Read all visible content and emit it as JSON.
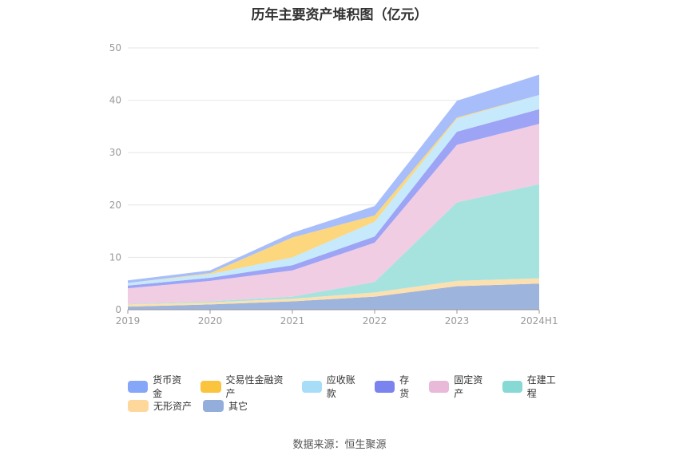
{
  "title": "历年主要资产堆积图（亿元）",
  "source": "数据来源：恒生聚源",
  "chart_data": {
    "type": "area",
    "stacked": true,
    "categories": [
      "2019",
      "2020",
      "2021",
      "2022",
      "2023",
      "2024H1"
    ],
    "ylim": [
      0,
      50
    ],
    "yticks": [
      0,
      10,
      20,
      30,
      40,
      50
    ],
    "grid": true,
    "legend_position": "bottom",
    "series": [
      {
        "name": "其它",
        "color": "#9db4dc",
        "values": [
          0.6,
          1.0,
          1.6,
          2.5,
          4.5,
          5.0
        ]
      },
      {
        "name": "无形资产",
        "color": "#fde0b0",
        "values": [
          0.4,
          0.4,
          0.5,
          0.8,
          1.0,
          1.0
        ]
      },
      {
        "name": "在建工程",
        "color": "#a6e3df",
        "values": [
          0.1,
          0.2,
          0.4,
          2.0,
          15.0,
          18.0
        ]
      },
      {
        "name": "固定资产",
        "color": "#f0cde3",
        "values": [
          3.0,
          3.9,
          5.0,
          7.5,
          11.0,
          11.5
        ]
      },
      {
        "name": "存货",
        "color": "#9da3f5",
        "values": [
          0.5,
          0.6,
          1.0,
          1.2,
          2.5,
          2.8
        ]
      },
      {
        "name": "应收账款",
        "color": "#c6e9fb",
        "values": [
          0.5,
          0.7,
          1.5,
          2.8,
          2.5,
          2.7
        ]
      },
      {
        "name": "交易性金融资产",
        "color": "#fcd77e",
        "values": [
          0.0,
          0.2,
          3.8,
          1.2,
          0.2,
          0.0
        ]
      },
      {
        "name": "货币资金",
        "color": "#a7befa",
        "values": [
          0.5,
          0.5,
          0.9,
          1.8,
          3.2,
          3.9
        ]
      }
    ]
  },
  "legend": {
    "rows": [
      [
        {
          "label": "货币资金",
          "color": "#86a6f7"
        },
        {
          "label": "交易性金融资产",
          "color": "#fbc43e"
        },
        {
          "label": "应收账款",
          "color": "#a8ddf8"
        },
        {
          "label": "存货",
          "color": "#7b83ef"
        },
        {
          "label": "固定资产",
          "color": "#e8b9d8"
        },
        {
          "label": "在建工程",
          "color": "#86d9d4"
        }
      ],
      [
        {
          "label": "无形资产",
          "color": "#fdd89a"
        },
        {
          "label": "其它",
          "color": "#93aedb"
        }
      ]
    ]
  }
}
